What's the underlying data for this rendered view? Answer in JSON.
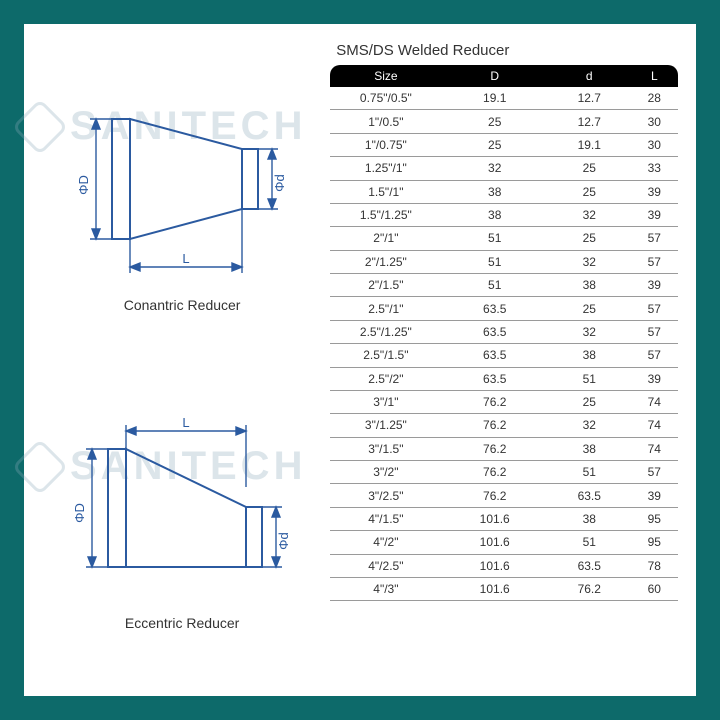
{
  "page": {
    "background_color": "#0d6a6a",
    "sheet_color": "#ffffff"
  },
  "watermark_text": "SANITECH",
  "diagrams": {
    "top_caption": "Conantric Reducer",
    "bottom_caption": "Eccentric Reducer",
    "line_color": "#2b5aa0",
    "dim_labels": {
      "D": "ΦD",
      "d": "Φd",
      "L": "L"
    }
  },
  "table": {
    "title": "SMS/DS Welded Reducer",
    "header_bg": "#000000",
    "header_fg": "#ffffff",
    "row_border_color": "#9a9a9a",
    "text_color": "#333333",
    "font_size_pt": 9,
    "columns": [
      "Size",
      "D",
      "d",
      "L"
    ],
    "rows": [
      [
        "0.75\"/0.5\"",
        "19.1",
        "12.7",
        "28"
      ],
      [
        "1\"/0.5\"",
        "25",
        "12.7",
        "30"
      ],
      [
        "1\"/0.75\"",
        "25",
        "19.1",
        "30"
      ],
      [
        "1.25\"/1\"",
        "32",
        "25",
        "33"
      ],
      [
        "1.5\"/1\"",
        "38",
        "25",
        "39"
      ],
      [
        "1.5\"/1.25\"",
        "38",
        "32",
        "39"
      ],
      [
        "2\"/1\"",
        "51",
        "25",
        "57"
      ],
      [
        "2\"/1.25\"",
        "51",
        "32",
        "57"
      ],
      [
        "2\"/1.5\"",
        "51",
        "38",
        "39"
      ],
      [
        "2.5\"/1\"",
        "63.5",
        "25",
        "57"
      ],
      [
        "2.5\"/1.25\"",
        "63.5",
        "32",
        "57"
      ],
      [
        "2.5\"/1.5\"",
        "63.5",
        "38",
        "57"
      ],
      [
        "2.5\"/2\"",
        "63.5",
        "51",
        "39"
      ],
      [
        "3\"/1\"",
        "76.2",
        "25",
        "74"
      ],
      [
        "3\"/1.25\"",
        "76.2",
        "32",
        "74"
      ],
      [
        "3\"/1.5\"",
        "76.2",
        "38",
        "74"
      ],
      [
        "3\"/2\"",
        "76.2",
        "51",
        "57"
      ],
      [
        "3\"/2.5\"",
        "76.2",
        "63.5",
        "39"
      ],
      [
        "4\"/1.5\"",
        "101.6",
        "38",
        "95"
      ],
      [
        "4\"/2\"",
        "101.6",
        "51",
        "95"
      ],
      [
        "4\"/2.5\"",
        "101.6",
        "63.5",
        "78"
      ],
      [
        "4\"/3\"",
        "101.6",
        "76.2",
        "60"
      ]
    ]
  }
}
